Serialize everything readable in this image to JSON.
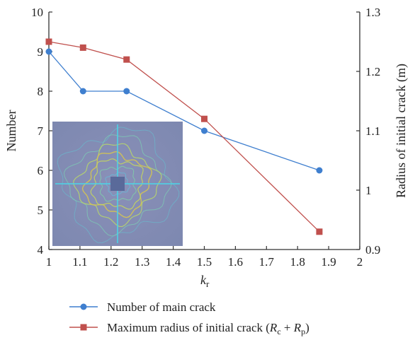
{
  "chart_data": {
    "type": "line",
    "x": [
      1.0,
      1.11,
      1.25,
      1.5,
      1.87
    ],
    "xlim": [
      1,
      2
    ],
    "xticks": [
      "1",
      "1.1",
      "1.2",
      "1.3",
      "1.4",
      "1.5",
      "1.6",
      "1.7",
      "1.8",
      "1.9",
      "2"
    ],
    "xlabel": {
      "main": "k",
      "sub": "r"
    },
    "ylabel_left": "Number",
    "ylim_left": [
      4,
      10
    ],
    "yticks_left": [
      "4",
      "5",
      "6",
      "7",
      "8",
      "9",
      "10"
    ],
    "ylabel_right": "Radius of initial crack (m)",
    "ylim_right": [
      0.9,
      1.3
    ],
    "yticks_right": [
      "0.9",
      "1",
      "1.1",
      "1.2",
      "1.3"
    ],
    "grid": false,
    "legend_position": "bottom",
    "series": [
      {
        "name": "Number of main crack",
        "axis": "left",
        "marker": "circle",
        "color": "#3f7fcf",
        "values": [
          9,
          8,
          8,
          7,
          6
        ]
      },
      {
        "name_parts": {
          "prefix": "Maximum radius of initial crack (",
          "r1": "R",
          "s1": "c",
          "plus": " + ",
          "r2": "R",
          "s2": "p",
          "suffix": ")"
        },
        "axis": "right",
        "marker": "square",
        "color": "#c0504d",
        "values": [
          1.25,
          1.24,
          1.22,
          1.12,
          0.93
        ]
      }
    ],
    "inset": "crack pattern image"
  }
}
